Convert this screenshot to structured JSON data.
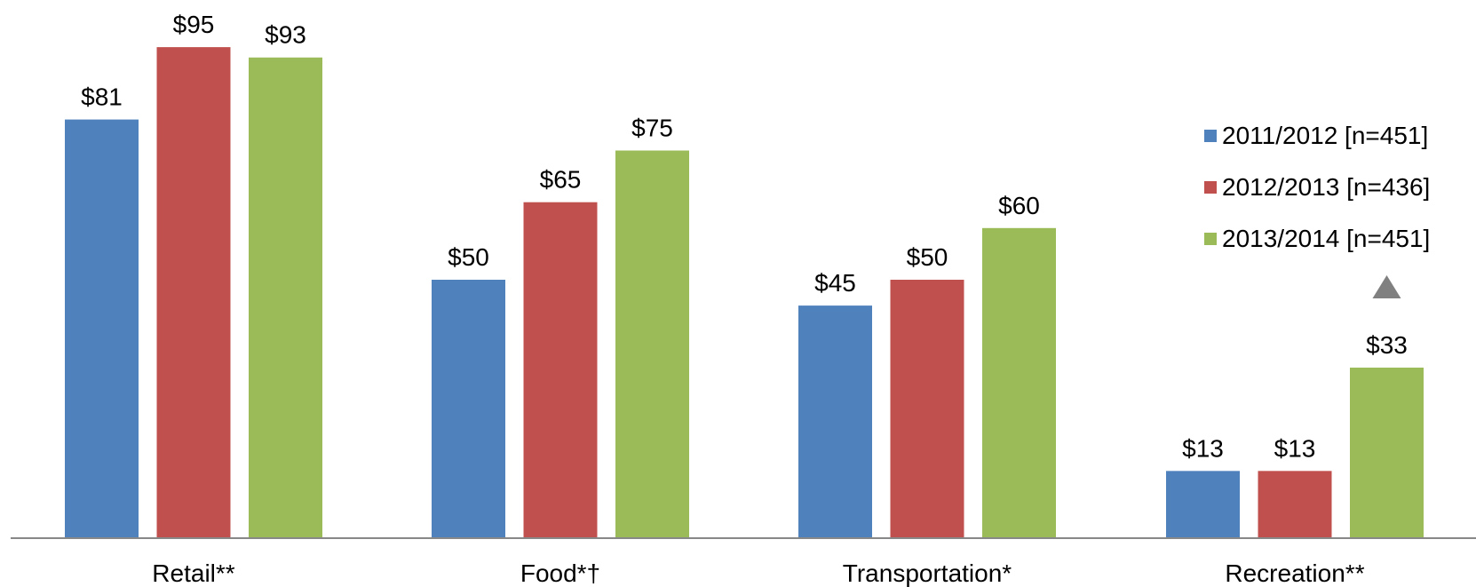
{
  "chart_data": {
    "type": "bar",
    "categories": [
      "Retail**",
      "Food*†",
      "Transportation*",
      "Recreation**"
    ],
    "series": [
      {
        "name": "2011/2012 [n=451]",
        "color": "#4f81bd",
        "values": [
          81,
          50,
          45,
          13
        ],
        "labels": [
          "$81",
          "$50",
          "$45",
          "$13"
        ]
      },
      {
        "name": "2012/2013 [n=436]",
        "color": "#c0504d",
        "values": [
          95,
          65,
          50,
          13
        ],
        "labels": [
          "$95",
          "$65",
          "$50",
          "$13"
        ]
      },
      {
        "name": "2013/2014 [n=451]",
        "color": "#9bbb59",
        "values": [
          93,
          75,
          60,
          33
        ],
        "labels": [
          "$93",
          "$75",
          "$60",
          "$33"
        ]
      }
    ],
    "ylim": [
      0,
      100
    ],
    "grid": false,
    "legend_position": "right",
    "annotation": {
      "category": "Recreation**",
      "series": "2013/2014 [n=451]",
      "marker": "up-triangle",
      "color": "#808080"
    }
  }
}
